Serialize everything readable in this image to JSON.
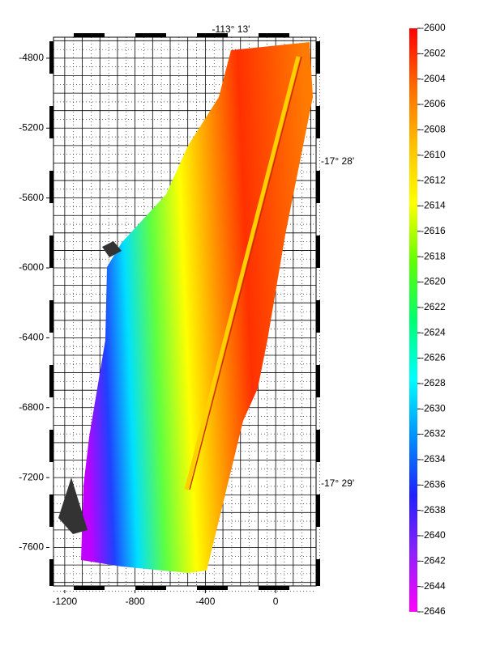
{
  "map": {
    "xlim": [
      -1264,
      230
    ],
    "ylim": [
      -7820,
      -4680
    ],
    "x_ticks": [
      -1200,
      -800,
      -400,
      0
    ],
    "y_ticks": [
      -4800,
      -5200,
      -5600,
      -6000,
      -6400,
      -6800,
      -7200,
      -7600
    ],
    "lon_label": "-113° 13'",
    "lat_labels": [
      "-17° 28'",
      "-17° 29'"
    ],
    "colorbar": {
      "lim": [
        -2600,
        -2646
      ],
      "ticks": [
        -2600,
        -2602,
        -2604,
        -2606,
        -2608,
        -2610,
        -2612,
        -2614,
        -2616,
        -2618,
        -2620,
        -2622,
        -2624,
        -2626,
        -2628,
        -2630,
        -2632,
        -2634,
        -2636,
        -2638,
        -2640,
        -2642,
        -2644,
        -2646
      ],
      "colors": [
        "#ff0000",
        "#ff6a00",
        "#ffc000",
        "#ffff00",
        "#60ff00",
        "#00ff70",
        "#00ffff",
        "#0090ff",
        "#2020ff",
        "#9020ff",
        "#ff00ff"
      ]
    }
  }
}
